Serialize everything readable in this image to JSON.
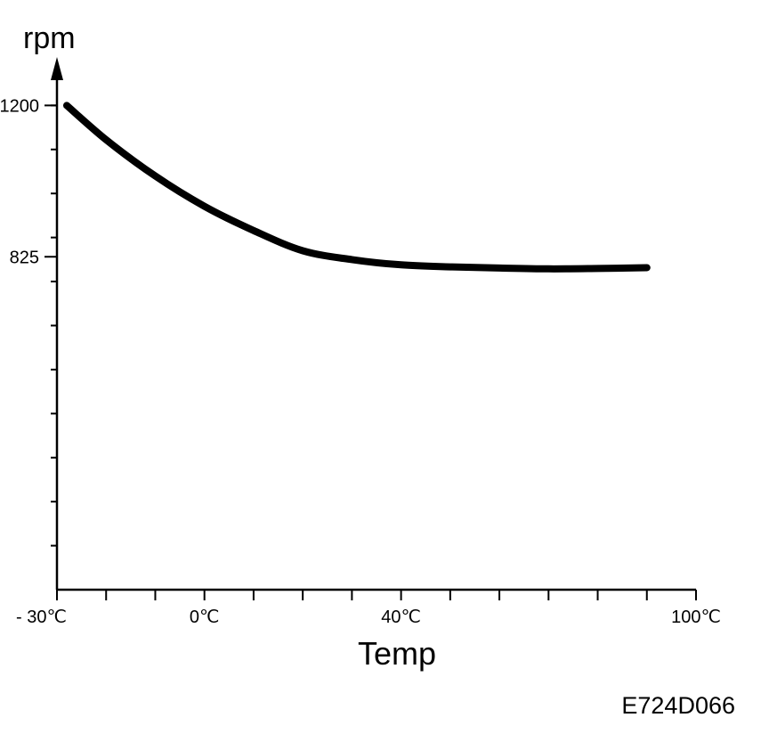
{
  "chart_data": {
    "type": "line",
    "xlabel": "Temp",
    "ylabel": "rpm",
    "code": "E724D066",
    "xlim": [
      -30,
      100
    ],
    "ylim": [
      0,
      1320
    ],
    "x_ticks": [
      {
        "value": -30,
        "label": "- 30℃"
      },
      {
        "value": 0,
        "label": "0℃"
      },
      {
        "value": 40,
        "label": "40℃"
      },
      {
        "value": 100,
        "label": "100℃"
      }
    ],
    "y_ticks": [
      {
        "value": 1200,
        "label": "1200"
      },
      {
        "value": 825,
        "label": "825"
      }
    ],
    "series": [
      {
        "x": [
          -28,
          -20,
          -10,
          0,
          10,
          20,
          30,
          40,
          50,
          60,
          70,
          80,
          90
        ],
        "y": [
          1200,
          1115,
          1025,
          950,
          890,
          840,
          818,
          805,
          800,
          797,
          795,
          796,
          798
        ]
      }
    ]
  }
}
